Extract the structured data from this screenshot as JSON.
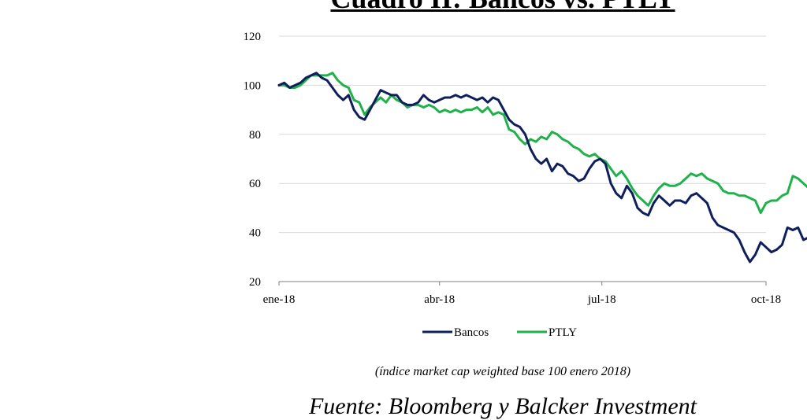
{
  "chart_data": {
    "type": "line",
    "title": "Cuadro II: Bancos vs. PTLY",
    "ylim": [
      20,
      120
    ],
    "yticks": [
      20,
      40,
      60,
      80,
      100,
      120
    ],
    "x_tick_labels": [
      "ene-18",
      "abr-18",
      "jul-18",
      "oct-18"
    ],
    "x_tick_dates": [
      "2018-01-01",
      "2018-04-01",
      "2018-07-01",
      "2018-10-01"
    ],
    "grid": true,
    "legend": "bottom",
    "series": [
      {
        "name": "Bancos",
        "color": "#0f1f5c",
        "points": [
          [
            "2018-01-01",
            100
          ],
          [
            "2018-01-04",
            101
          ],
          [
            "2018-01-07",
            99
          ],
          [
            "2018-01-10",
            100
          ],
          [
            "2018-01-13",
            101
          ],
          [
            "2018-01-16",
            103
          ],
          [
            "2018-01-19",
            104
          ],
          [
            "2018-01-22",
            105
          ],
          [
            "2018-01-25",
            103
          ],
          [
            "2018-01-28",
            102
          ],
          [
            "2018-01-31",
            99
          ],
          [
            "2018-02-03",
            96
          ],
          [
            "2018-02-06",
            94
          ],
          [
            "2018-02-09",
            96
          ],
          [
            "2018-02-12",
            90
          ],
          [
            "2018-02-15",
            87
          ],
          [
            "2018-02-18",
            86
          ],
          [
            "2018-02-21",
            90
          ],
          [
            "2018-02-24",
            94
          ],
          [
            "2018-02-27",
            98
          ],
          [
            "2018-03-02",
            97
          ],
          [
            "2018-03-05",
            96
          ],
          [
            "2018-03-08",
            96
          ],
          [
            "2018-03-11",
            93
          ],
          [
            "2018-03-14",
            92
          ],
          [
            "2018-03-17",
            92
          ],
          [
            "2018-03-20",
            93
          ],
          [
            "2018-03-23",
            96
          ],
          [
            "2018-03-26",
            94
          ],
          [
            "2018-03-29",
            93
          ],
          [
            "2018-04-01",
            94
          ],
          [
            "2018-04-04",
            95
          ],
          [
            "2018-04-07",
            95
          ],
          [
            "2018-04-10",
            96
          ],
          [
            "2018-04-13",
            95
          ],
          [
            "2018-04-16",
            96
          ],
          [
            "2018-04-19",
            95
          ],
          [
            "2018-04-22",
            94
          ],
          [
            "2018-04-25",
            95
          ],
          [
            "2018-04-28",
            93
          ],
          [
            "2018-05-01",
            95
          ],
          [
            "2018-05-04",
            94
          ],
          [
            "2018-05-07",
            90
          ],
          [
            "2018-05-10",
            86
          ],
          [
            "2018-05-13",
            84
          ],
          [
            "2018-05-16",
            83
          ],
          [
            "2018-05-19",
            80
          ],
          [
            "2018-05-22",
            74
          ],
          [
            "2018-05-25",
            70
          ],
          [
            "2018-05-28",
            68
          ],
          [
            "2018-05-31",
            70
          ],
          [
            "2018-06-03",
            65
          ],
          [
            "2018-06-06",
            68
          ],
          [
            "2018-06-09",
            67
          ],
          [
            "2018-06-12",
            64
          ],
          [
            "2018-06-15",
            63
          ],
          [
            "2018-06-18",
            61
          ],
          [
            "2018-06-21",
            62
          ],
          [
            "2018-06-24",
            66
          ],
          [
            "2018-06-27",
            69
          ],
          [
            "2018-06-30",
            70
          ],
          [
            "2018-07-03",
            68
          ],
          [
            "2018-07-06",
            60
          ],
          [
            "2018-07-09",
            56
          ],
          [
            "2018-07-12",
            54
          ],
          [
            "2018-07-15",
            59
          ],
          [
            "2018-07-18",
            56
          ],
          [
            "2018-07-21",
            50
          ],
          [
            "2018-07-24",
            48
          ],
          [
            "2018-07-27",
            47
          ],
          [
            "2018-07-30",
            52
          ],
          [
            "2018-08-02",
            55
          ],
          [
            "2018-08-05",
            53
          ],
          [
            "2018-08-08",
            51
          ],
          [
            "2018-08-11",
            53
          ],
          [
            "2018-08-14",
            53
          ],
          [
            "2018-08-17",
            52
          ],
          [
            "2018-08-20",
            55
          ],
          [
            "2018-08-23",
            56
          ],
          [
            "2018-08-26",
            54
          ],
          [
            "2018-08-29",
            52
          ],
          [
            "2018-09-01",
            46
          ],
          [
            "2018-09-04",
            43
          ],
          [
            "2018-09-07",
            42
          ],
          [
            "2018-09-10",
            41
          ],
          [
            "2018-09-13",
            40
          ],
          [
            "2018-09-16",
            37
          ],
          [
            "2018-09-19",
            32
          ],
          [
            "2018-09-22",
            28
          ],
          [
            "2018-09-25",
            31
          ],
          [
            "2018-09-28",
            36
          ],
          [
            "2018-10-01",
            34
          ],
          [
            "2018-10-04",
            32
          ],
          [
            "2018-10-07",
            33
          ],
          [
            "2018-10-10",
            35
          ],
          [
            "2018-10-13",
            42
          ],
          [
            "2018-10-16",
            41
          ],
          [
            "2018-10-19",
            42
          ],
          [
            "2018-10-22",
            37
          ],
          [
            "2018-10-25",
            38
          ],
          [
            "2018-10-28",
            40
          ],
          [
            "2018-10-31",
            36
          ]
        ]
      },
      {
        "name": "PTLY",
        "color": "#1fb24a",
        "points": [
          [
            "2018-01-01",
            100
          ],
          [
            "2018-01-04",
            100
          ],
          [
            "2018-01-07",
            99
          ],
          [
            "2018-01-10",
            99
          ],
          [
            "2018-01-13",
            100
          ],
          [
            "2018-01-16",
            102
          ],
          [
            "2018-01-19",
            104
          ],
          [
            "2018-01-22",
            104
          ],
          [
            "2018-01-25",
            104
          ],
          [
            "2018-01-28",
            104
          ],
          [
            "2018-01-31",
            105
          ],
          [
            "2018-02-03",
            102
          ],
          [
            "2018-02-06",
            100
          ],
          [
            "2018-02-09",
            99
          ],
          [
            "2018-02-12",
            94
          ],
          [
            "2018-02-15",
            93
          ],
          [
            "2018-02-18",
            88
          ],
          [
            "2018-02-21",
            91
          ],
          [
            "2018-02-24",
            93
          ],
          [
            "2018-02-27",
            95
          ],
          [
            "2018-03-02",
            93
          ],
          [
            "2018-03-05",
            96
          ],
          [
            "2018-03-08",
            94
          ],
          [
            "2018-03-11",
            93
          ],
          [
            "2018-03-14",
            91
          ],
          [
            "2018-03-17",
            92
          ],
          [
            "2018-03-20",
            92
          ],
          [
            "2018-03-23",
            91
          ],
          [
            "2018-03-26",
            92
          ],
          [
            "2018-03-29",
            91
          ],
          [
            "2018-04-01",
            89
          ],
          [
            "2018-04-04",
            90
          ],
          [
            "2018-04-07",
            89
          ],
          [
            "2018-04-10",
            90
          ],
          [
            "2018-04-13",
            89
          ],
          [
            "2018-04-16",
            90
          ],
          [
            "2018-04-19",
            90
          ],
          [
            "2018-04-22",
            91
          ],
          [
            "2018-04-25",
            89
          ],
          [
            "2018-04-28",
            91
          ],
          [
            "2018-05-01",
            88
          ],
          [
            "2018-05-04",
            89
          ],
          [
            "2018-05-07",
            88
          ],
          [
            "2018-05-10",
            82
          ],
          [
            "2018-05-13",
            81
          ],
          [
            "2018-05-16",
            78
          ],
          [
            "2018-05-19",
            76
          ],
          [
            "2018-05-22",
            78
          ],
          [
            "2018-05-25",
            77
          ],
          [
            "2018-05-28",
            79
          ],
          [
            "2018-05-31",
            78
          ],
          [
            "2018-06-03",
            81
          ],
          [
            "2018-06-06",
            80
          ],
          [
            "2018-06-09",
            78
          ],
          [
            "2018-06-12",
            77
          ],
          [
            "2018-06-15",
            75
          ],
          [
            "2018-06-18",
            74
          ],
          [
            "2018-06-21",
            72
          ],
          [
            "2018-06-24",
            71
          ],
          [
            "2018-06-27",
            72
          ],
          [
            "2018-06-30",
            70
          ],
          [
            "2018-07-03",
            69
          ],
          [
            "2018-07-06",
            66
          ],
          [
            "2018-07-09",
            63
          ],
          [
            "2018-07-12",
            65
          ],
          [
            "2018-07-15",
            62
          ],
          [
            "2018-07-18",
            58
          ],
          [
            "2018-07-21",
            55
          ],
          [
            "2018-07-24",
            53
          ],
          [
            "2018-07-27",
            51
          ],
          [
            "2018-07-30",
            55
          ],
          [
            "2018-08-02",
            58
          ],
          [
            "2018-08-05",
            60
          ],
          [
            "2018-08-08",
            59
          ],
          [
            "2018-08-11",
            59
          ],
          [
            "2018-08-14",
            60
          ],
          [
            "2018-08-17",
            62
          ],
          [
            "2018-08-20",
            64
          ],
          [
            "2018-08-23",
            63
          ],
          [
            "2018-08-26",
            64
          ],
          [
            "2018-08-29",
            62
          ],
          [
            "2018-09-01",
            61
          ],
          [
            "2018-09-04",
            60
          ],
          [
            "2018-09-07",
            57
          ],
          [
            "2018-09-10",
            56
          ],
          [
            "2018-09-13",
            56
          ],
          [
            "2018-09-16",
            55
          ],
          [
            "2018-09-19",
            55
          ],
          [
            "2018-09-22",
            54
          ],
          [
            "2018-09-25",
            53
          ],
          [
            "2018-09-28",
            48
          ],
          [
            "2018-10-01",
            52
          ],
          [
            "2018-10-04",
            53
          ],
          [
            "2018-10-07",
            53
          ],
          [
            "2018-10-10",
            55
          ],
          [
            "2018-10-13",
            56
          ],
          [
            "2018-10-16",
            63
          ],
          [
            "2018-10-19",
            62
          ],
          [
            "2018-10-22",
            60
          ],
          [
            "2018-10-25",
            58
          ],
          [
            "2018-10-28",
            55
          ],
          [
            "2018-10-31",
            57
          ]
        ]
      }
    ]
  },
  "subtitle": "(índice market cap weighted base 100 enero 2018)",
  "source_note": "Fuente: Bloomberg y Balcker Investment"
}
